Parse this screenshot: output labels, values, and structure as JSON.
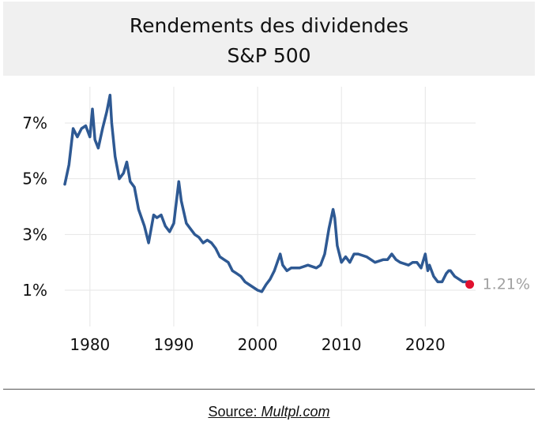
{
  "title_line_1": "Rendements des dividendes",
  "title_line_2": "S&P 500",
  "source_label": "Source:",
  "source_site": "Multpl.com",
  "end_label": "1.21%",
  "colors": {
    "line": "#2e5993",
    "end_marker": "#e0102e",
    "end_label": "#a0a0a0",
    "grid": "#e6e6e6",
    "title_band": "#f0f0f0"
  },
  "chart_data": {
    "type": "line",
    "title": "Rendements des dividendes S&P 500",
    "xlabel": "",
    "ylabel": "",
    "xlim": [
      1977,
      2026
    ],
    "ylim": [
      -0.3,
      8.3
    ],
    "grid": true,
    "y_ticks": [
      1,
      3,
      5,
      7
    ],
    "y_tick_labels": [
      "1%",
      "3%",
      "5%",
      "7%"
    ],
    "x_ticks": [
      1980,
      1990,
      2000,
      2010,
      2020
    ],
    "x_tick_labels": [
      "1980",
      "1990",
      "2000",
      "2010",
      "2020"
    ],
    "series": [
      {
        "x": [
          1977.0,
          1977.5,
          1978.0,
          1978.5,
          1979.0,
          1979.5,
          1980.0,
          1980.3,
          1980.6,
          1981.0,
          1981.5,
          1982.0,
          1982.4,
          1982.6,
          1983.0,
          1983.5,
          1984.0,
          1984.4,
          1984.8,
          1985.3,
          1985.8,
          1986.5,
          1987.0,
          1987.6,
          1988.0,
          1988.5,
          1989.0,
          1989.5,
          1990.0,
          1990.6,
          1990.9,
          1991.5,
          1992.0,
          1992.5,
          1993.0,
          1993.5,
          1994.0,
          1994.5,
          1995.0,
          1995.5,
          1996.0,
          1996.5,
          1997.0,
          1997.5,
          1998.0,
          1998.5,
          1999.0,
          1999.5,
          2000.0,
          2000.5,
          2001.0,
          2001.5,
          2002.0,
          2002.7,
          2003.0,
          2003.5,
          2004.0,
          2005.0,
          2006.0,
          2007.0,
          2007.5,
          2008.0,
          2008.5,
          2009.0,
          2009.2,
          2009.5,
          2010.0,
          2010.5,
          2011.0,
          2011.5,
          2012.0,
          2013.0,
          2014.0,
          2015.0,
          2015.5,
          2016.0,
          2016.5,
          2017.0,
          2018.0,
          2018.5,
          2019.0,
          2019.5,
          2020.0,
          2020.3,
          2020.5,
          2021.0,
          2021.5,
          2022.0,
          2022.5,
          2022.8,
          2023.0,
          2023.5,
          2024.0,
          2024.5,
          2025.0,
          2025.3
        ],
        "y": [
          4.8,
          5.5,
          6.8,
          6.5,
          6.8,
          6.9,
          6.5,
          7.5,
          6.4,
          6.1,
          6.8,
          7.4,
          8.0,
          7.0,
          5.8,
          5.0,
          5.2,
          5.6,
          4.9,
          4.7,
          3.9,
          3.3,
          2.7,
          3.7,
          3.6,
          3.7,
          3.3,
          3.1,
          3.4,
          4.9,
          4.2,
          3.4,
          3.2,
          3.0,
          2.9,
          2.7,
          2.8,
          2.7,
          2.5,
          2.2,
          2.1,
          2.0,
          1.7,
          1.6,
          1.5,
          1.3,
          1.2,
          1.1,
          1.0,
          0.95,
          1.2,
          1.4,
          1.7,
          2.3,
          1.9,
          1.7,
          1.8,
          1.8,
          1.9,
          1.8,
          1.9,
          2.3,
          3.2,
          3.9,
          3.6,
          2.6,
          2.0,
          2.2,
          2.0,
          2.3,
          2.3,
          2.2,
          2.0,
          2.1,
          2.1,
          2.3,
          2.1,
          2.0,
          1.9,
          2.0,
          2.0,
          1.8,
          2.3,
          1.7,
          1.9,
          1.5,
          1.3,
          1.3,
          1.6,
          1.7,
          1.7,
          1.5,
          1.4,
          1.3,
          1.3,
          1.21
        ]
      }
    ],
    "end_point": {
      "x": 2025.3,
      "y": 1.21,
      "label": "1.21%"
    }
  }
}
